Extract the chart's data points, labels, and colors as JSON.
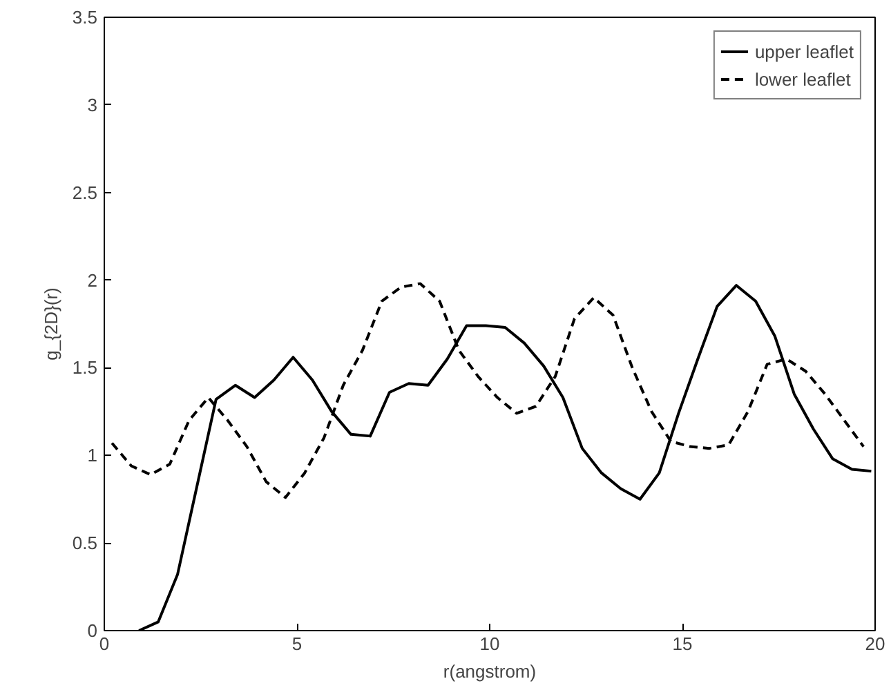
{
  "chart_data": {
    "type": "line",
    "xlabel": "r(angstrom)",
    "ylabel": "g_{2D}(r)",
    "xlim": [
      0,
      20
    ],
    "ylim": [
      0,
      3.5
    ],
    "xticks": [
      0,
      5,
      10,
      15,
      20
    ],
    "yticks": [
      0,
      0.5,
      1,
      1.5,
      2,
      2.5,
      3,
      3.5
    ],
    "grid": false,
    "legend": "top right",
    "series": [
      {
        "name": "upper leaflet",
        "color": "#000000",
        "line_style": "solid",
        "x": [
          0.9,
          1.4,
          1.9,
          2.4,
          2.9,
          3.4,
          3.9,
          4.4,
          4.9,
          5.4,
          5.9,
          6.4,
          6.9,
          7.4,
          7.9,
          8.4,
          8.9,
          9.4,
          9.9,
          10.4,
          10.9,
          11.4,
          11.9,
          12.4,
          12.9,
          13.4,
          13.9,
          14.4,
          14.9,
          15.4,
          15.9,
          16.4,
          16.9,
          17.4,
          17.9,
          18.4,
          18.9,
          19.4,
          19.9
        ],
        "values": [
          0,
          0.05,
          0.32,
          0.82,
          1.32,
          1.4,
          1.33,
          1.43,
          1.56,
          1.43,
          1.25,
          1.12,
          1.11,
          1.36,
          1.41,
          1.4,
          1.55,
          1.74,
          1.74,
          1.73,
          1.64,
          1.51,
          1.33,
          1.04,
          0.9,
          0.81,
          0.75,
          0.9,
          1.24,
          1.55,
          1.85,
          1.97,
          1.88,
          1.68,
          1.35,
          1.15,
          0.98,
          0.92,
          0.91
        ]
      },
      {
        "name": "lower leaflet",
        "color": "#000000",
        "line_style": "dashed",
        "x": [
          0.2,
          0.7,
          1.2,
          1.7,
          2.2,
          2.7,
          3.2,
          3.7,
          4.2,
          4.7,
          5.2,
          5.7,
          6.2,
          6.7,
          7.2,
          7.7,
          8.2,
          8.7,
          9.2,
          9.7,
          10.2,
          10.7,
          11.2,
          11.7,
          12.2,
          12.7,
          13.2,
          13.7,
          14.2,
          14.7,
          15.2,
          15.7,
          16.2,
          16.7,
          17.2,
          17.7,
          18.2,
          18.7,
          19.2,
          19.7
        ],
        "values": [
          1.07,
          0.94,
          0.89,
          0.95,
          1.2,
          1.33,
          1.2,
          1.05,
          0.85,
          0.76,
          0.9,
          1.1,
          1.4,
          1.6,
          1.88,
          1.96,
          1.98,
          1.88,
          1.6,
          1.45,
          1.33,
          1.24,
          1.28,
          1.45,
          1.78,
          1.9,
          1.8,
          1.5,
          1.25,
          1.08,
          1.05,
          1.04,
          1.06,
          1.25,
          1.52,
          1.55,
          1.48,
          1.35,
          1.2,
          1.05
        ]
      }
    ]
  }
}
